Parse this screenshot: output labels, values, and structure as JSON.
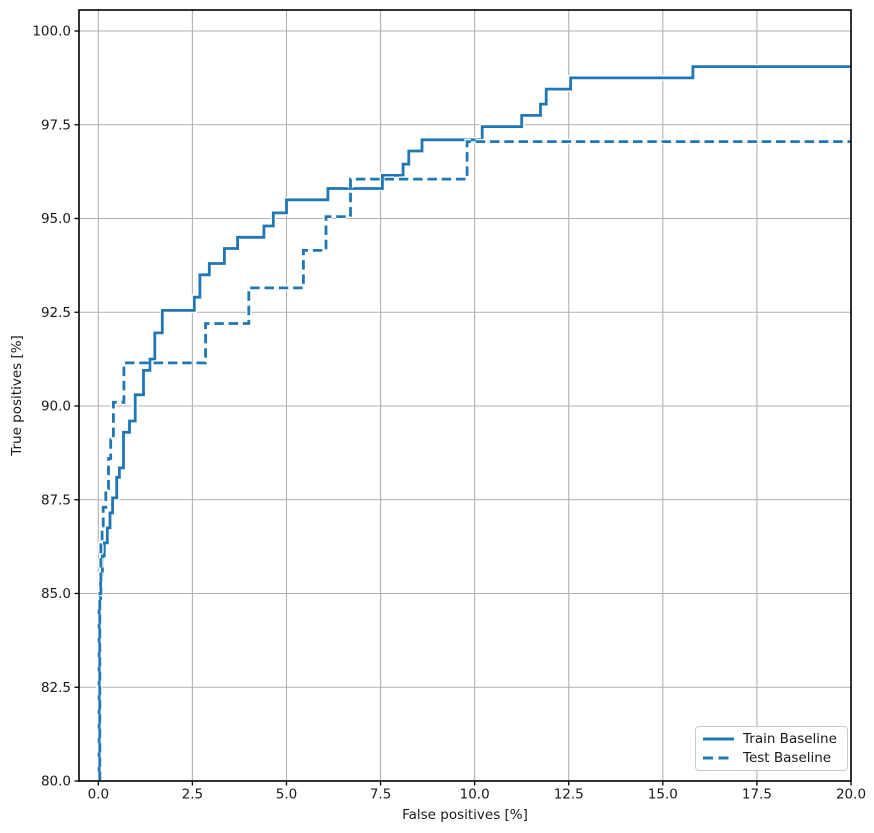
{
  "chart_data": {
    "type": "line",
    "subtype": "step-roc-curves",
    "title": "",
    "xlabel": "False positives [%]",
    "ylabel": "True positives [%]",
    "xlim": [
      -0.513,
      20
    ],
    "ylim": [
      80,
      100.56
    ],
    "x_ticks": [
      0,
      2.5,
      5,
      7.5,
      10,
      12.5,
      15,
      17.5,
      20
    ],
    "x_tick_labels": [
      "0.0",
      "2.5",
      "5.0",
      "7.5",
      "10.0",
      "12.5",
      "15.0",
      "17.5",
      "20.0"
    ],
    "y_ticks": [
      80,
      82.5,
      85,
      87.5,
      90,
      92.5,
      95,
      97.5,
      100
    ],
    "y_tick_labels": [
      "80.0",
      "82.5",
      "85.0",
      "87.5",
      "90.0",
      "92.5",
      "95.0",
      "97.5",
      "100.0"
    ],
    "grid": true,
    "grid_color": "#b0b0b0",
    "axis_color": "#000000",
    "tick_label_color": "#1a1a1a",
    "background_color": "#ffffff",
    "line_halo_color": "#ffffff",
    "legend_position": "lower right",
    "legend_border_color": "#c9c9c9",
    "series": [
      {
        "name": "Train Baseline",
        "style": "solid",
        "color": "#1f77b4",
        "points": [
          [
            0.02,
            80
          ],
          [
            0.02,
            84.6
          ],
          [
            0.06,
            84.6
          ],
          [
            0.06,
            85.5
          ],
          [
            0.11,
            85.5
          ],
          [
            0.11,
            86.0
          ],
          [
            0.16,
            86.0
          ],
          [
            0.16,
            86.35
          ],
          [
            0.24,
            86.35
          ],
          [
            0.24,
            86.75
          ],
          [
            0.31,
            86.75
          ],
          [
            0.31,
            87.15
          ],
          [
            0.38,
            87.15
          ],
          [
            0.38,
            87.55
          ],
          [
            0.49,
            87.55
          ],
          [
            0.49,
            88.1
          ],
          [
            0.56,
            88.1
          ],
          [
            0.56,
            88.35
          ],
          [
            0.67,
            88.35
          ],
          [
            0.67,
            89.3
          ],
          [
            0.83,
            89.3
          ],
          [
            0.83,
            89.6
          ],
          [
            0.98,
            89.6
          ],
          [
            0.98,
            90.3
          ],
          [
            1.2,
            90.3
          ],
          [
            1.2,
            90.95
          ],
          [
            1.37,
            90.95
          ],
          [
            1.37,
            91.25
          ],
          [
            1.5,
            91.25
          ],
          [
            1.5,
            91.95
          ],
          [
            1.7,
            91.95
          ],
          [
            1.7,
            92.55
          ],
          [
            2.55,
            92.55
          ],
          [
            2.55,
            92.9
          ],
          [
            2.7,
            92.9
          ],
          [
            2.7,
            93.5
          ],
          [
            2.95,
            93.5
          ],
          [
            2.95,
            93.8
          ],
          [
            3.35,
            93.8
          ],
          [
            3.35,
            94.2
          ],
          [
            3.7,
            94.2
          ],
          [
            3.7,
            94.5
          ],
          [
            4.4,
            94.5
          ],
          [
            4.4,
            94.8
          ],
          [
            4.65,
            94.8
          ],
          [
            4.65,
            95.15
          ],
          [
            5.0,
            95.15
          ],
          [
            5.0,
            95.5
          ],
          [
            6.1,
            95.5
          ],
          [
            6.1,
            95.8
          ],
          [
            7.55,
            95.8
          ],
          [
            7.55,
            96.15
          ],
          [
            8.1,
            96.15
          ],
          [
            8.1,
            96.45
          ],
          [
            8.25,
            96.45
          ],
          [
            8.25,
            96.8
          ],
          [
            8.6,
            96.8
          ],
          [
            8.6,
            97.1
          ],
          [
            10.2,
            97.1
          ],
          [
            10.2,
            97.45
          ],
          [
            11.25,
            97.45
          ],
          [
            11.25,
            97.75
          ],
          [
            11.75,
            97.75
          ],
          [
            11.75,
            98.05
          ],
          [
            11.9,
            98.05
          ],
          [
            11.9,
            98.45
          ],
          [
            12.55,
            98.45
          ],
          [
            12.55,
            98.75
          ],
          [
            15.8,
            98.75
          ],
          [
            15.8,
            99.05
          ],
          [
            20,
            99.05
          ]
        ]
      },
      {
        "name": "Test Baseline",
        "style": "dashed",
        "color": "#1f77b4",
        "points": [
          [
            0.04,
            80
          ],
          [
            0.04,
            85.0
          ],
          [
            0.07,
            85.0
          ],
          [
            0.07,
            86.3
          ],
          [
            0.1,
            86.3
          ],
          [
            0.1,
            86.8
          ],
          [
            0.13,
            86.8
          ],
          [
            0.13,
            87.3
          ],
          [
            0.2,
            87.3
          ],
          [
            0.2,
            87.8
          ],
          [
            0.27,
            87.8
          ],
          [
            0.27,
            88.6
          ],
          [
            0.33,
            88.6
          ],
          [
            0.33,
            89.1
          ],
          [
            0.4,
            89.1
          ],
          [
            0.4,
            90.1
          ],
          [
            0.68,
            90.1
          ],
          [
            0.68,
            91.15
          ],
          [
            2.85,
            91.15
          ],
          [
            2.85,
            92.2
          ],
          [
            4.0,
            92.2
          ],
          [
            4.0,
            93.15
          ],
          [
            5.45,
            93.15
          ],
          [
            5.45,
            94.15
          ],
          [
            6.05,
            94.15
          ],
          [
            6.05,
            95.05
          ],
          [
            6.7,
            95.05
          ],
          [
            6.7,
            96.05
          ],
          [
            9.8,
            96.05
          ],
          [
            9.8,
            97.05
          ],
          [
            20,
            97.05
          ]
        ]
      }
    ]
  }
}
